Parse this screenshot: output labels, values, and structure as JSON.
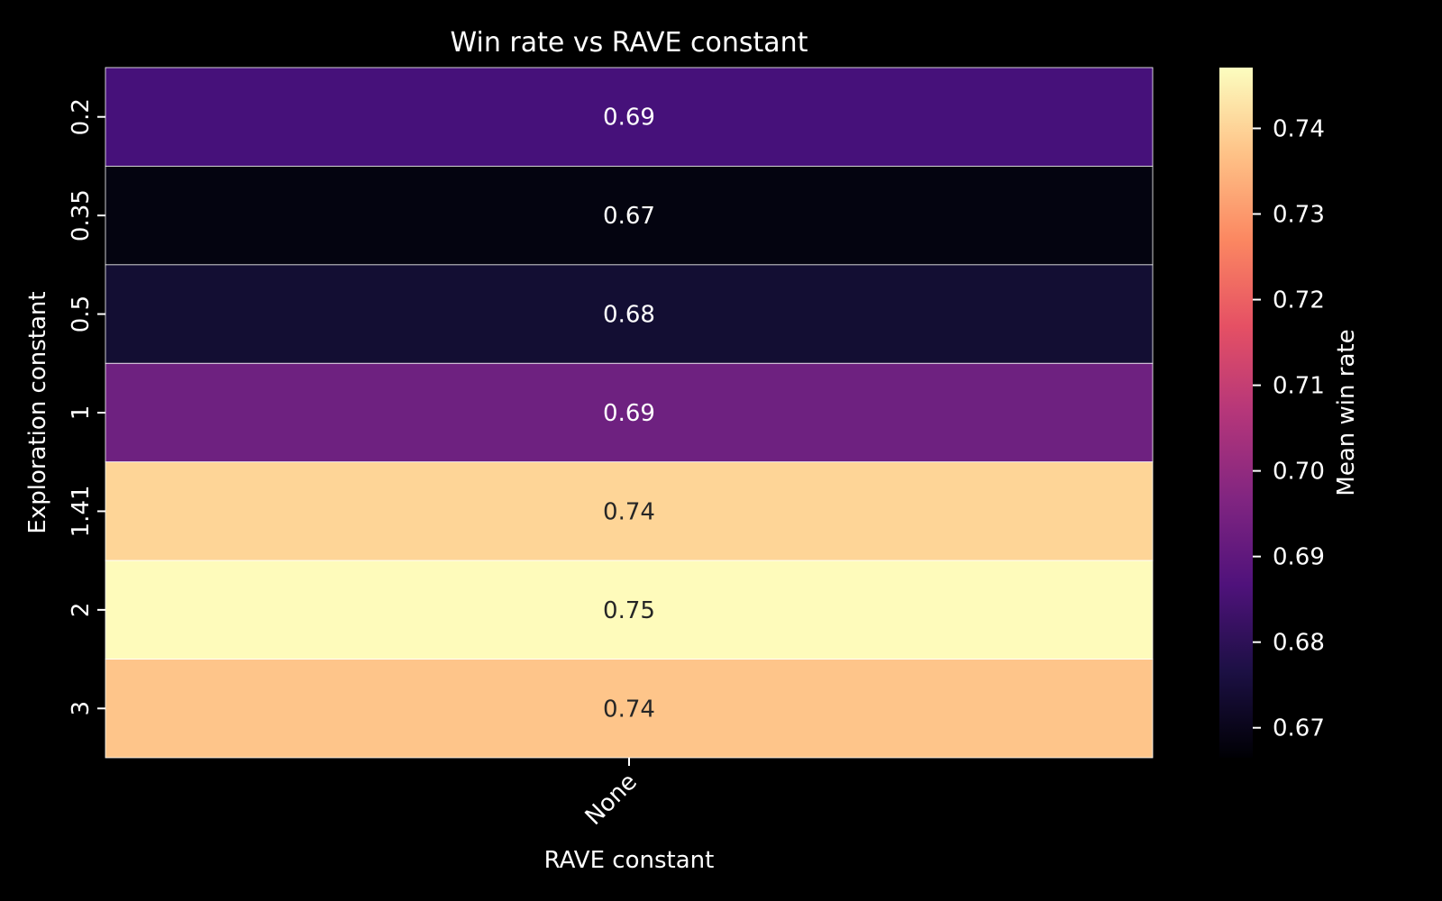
{
  "chart_data": {
    "type": "heatmap",
    "title": "Win rate vs RAVE constant",
    "xlabel": "RAVE constant",
    "ylabel": "Exploration constant",
    "x_categories": [
      "None"
    ],
    "y_categories": [
      "0.2",
      "0.35",
      "0.5",
      "1",
      "1.41",
      "2",
      "3"
    ],
    "values": [
      [
        0.69
      ],
      [
        0.67
      ],
      [
        0.68
      ],
      [
        0.69
      ],
      [
        0.74
      ],
      [
        0.75
      ],
      [
        0.74
      ]
    ],
    "cell_labels": [
      [
        "0.69"
      ],
      [
        "0.67"
      ],
      [
        "0.68"
      ],
      [
        "0.69"
      ],
      [
        "0.74"
      ],
      [
        "0.75"
      ],
      [
        "0.74"
      ]
    ],
    "cell_colors": [
      [
        "#46117a"
      ],
      [
        "#040410"
      ],
      [
        "#130e33"
      ],
      [
        "#6e2180"
      ],
      [
        "#fed597"
      ],
      [
        "#fefbbb"
      ],
      [
        "#fec58a"
      ]
    ],
    "cell_text_colors": [
      [
        "#ffffff"
      ],
      [
        "#ffffff"
      ],
      [
        "#ffffff"
      ],
      [
        "#ffffff"
      ],
      [
        "#262626"
      ],
      [
        "#262626"
      ],
      [
        "#262626"
      ]
    ],
    "colorbar": {
      "label": "Mean win rate",
      "colormap": "magma",
      "range": [
        0.6665,
        0.7471
      ],
      "ticks": [
        0.67,
        0.68,
        0.69,
        0.7,
        0.71,
        0.72,
        0.73,
        0.74
      ],
      "tick_labels": [
        "0.67",
        "0.68",
        "0.69",
        "0.70",
        "0.71",
        "0.72",
        "0.73",
        "0.74"
      ],
      "stops": [
        "#000004",
        "#1c1044",
        "#4f127b",
        "#812581",
        "#b5367a",
        "#e55064",
        "#fb8761",
        "#fec287",
        "#fcfdbf"
      ]
    },
    "grid": false,
    "legend": "none",
    "background": "#000000"
  }
}
